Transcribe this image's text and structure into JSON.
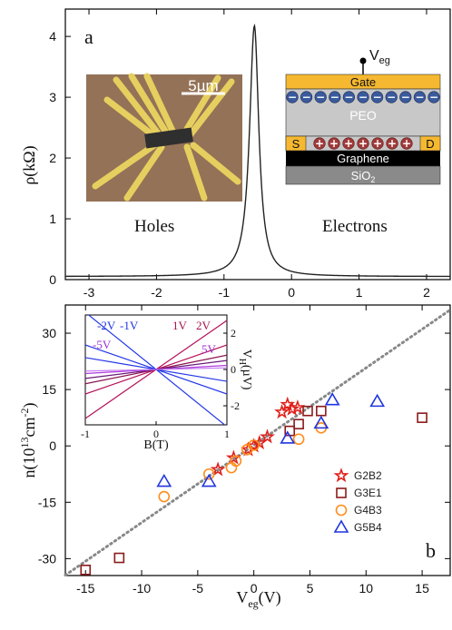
{
  "chart_data": [
    {
      "panel": "a",
      "type": "line",
      "panel_label": "a",
      "ylabel": "ρ(kΩ)",
      "ylim": [
        0,
        4.45
      ],
      "xlim": [
        -3.35,
        2.35
      ],
      "x_ticks": [
        -3,
        -2,
        -1,
        0,
        1,
        2
      ],
      "y_ticks": [
        0,
        1,
        2,
        3,
        4
      ],
      "annotations": [
        "Holes",
        "Electrons"
      ],
      "curve": {
        "peak_x": -0.55,
        "peak_y": 4.18,
        "baseline": 0.05,
        "gamma": 0.08
      },
      "inset_micrograph": {
        "scale_bar": "5µm"
      },
      "inset_schematic": {
        "terminal": "V",
        "terminal_sub": "eg",
        "layers": [
          "Gate",
          "PEO",
          "Graphene",
          "SiO"
        ],
        "sio_sub": "2",
        "contacts": [
          "S",
          "D"
        ],
        "top_ions": "−",
        "bottom_ions": "+"
      }
    },
    {
      "panel": "b",
      "type": "scatter",
      "panel_label": "b",
      "xlabel": "V",
      "xlabel_sub": "eg",
      "xlabel_unit": "(V)",
      "ylabel": "n(10",
      "ylabel_sup": "13",
      "ylabel_unit": "cm",
      "ylabel_sup2": "-2",
      "ylabel_end": ")",
      "xlim": [
        -16.8,
        17.5
      ],
      "ylim": [
        -34.5,
        37.5
      ],
      "x_ticks": [
        -15,
        -10,
        -5,
        0,
        5,
        10,
        15
      ],
      "y_ticks": [
        -30,
        -15,
        0,
        15,
        30
      ],
      "fit_line": {
        "x": [
          -16.8,
          17.5
        ],
        "y": [
          -34.4,
          36.2
        ],
        "style": "dotted",
        "color": "#888888"
      },
      "legend_position": "bottom-right",
      "series": [
        {
          "name": "G2B2",
          "marker": "star",
          "color": "#e0201b",
          "points": [
            [
              -3.2,
              -6.3
            ],
            [
              -1.8,
              -3.2
            ],
            [
              -0.5,
              -1.0
            ],
            [
              0.0,
              0.0
            ],
            [
              0.5,
              0.8
            ],
            [
              1.2,
              2.4
            ],
            [
              2.5,
              9.0
            ],
            [
              3.0,
              11.0
            ],
            [
              3.4,
              9.8
            ],
            [
              3.9,
              10.2
            ]
          ]
        },
        {
          "name": "G3E1",
          "marker": "square",
          "color": "#8b1a1a",
          "points": [
            [
              -15.0,
              -33.0
            ],
            [
              -12.0,
              -29.8
            ],
            [
              3.2,
              4.0
            ],
            [
              4.0,
              5.8
            ],
            [
              4.8,
              9.3
            ],
            [
              6.0,
              9.3
            ],
            [
              15.0,
              7.5
            ]
          ]
        },
        {
          "name": "G4B3",
          "marker": "circle",
          "color": "#ff8c1a",
          "points": [
            [
              -8.0,
              -13.5
            ],
            [
              -4.0,
              -7.5
            ],
            [
              -2.0,
              -5.8
            ],
            [
              -1.6,
              -4.0
            ],
            [
              -0.6,
              -1.0
            ],
            [
              0.0,
              0.2
            ],
            [
              4.0,
              1.8
            ],
            [
              6.0,
              4.8
            ]
          ]
        },
        {
          "name": "G5B4",
          "marker": "triangle",
          "color": "#1f35e0",
          "points": [
            [
              -8.0,
              -9.5
            ],
            [
              -4.0,
              -9.5
            ],
            [
              3.0,
              2.0
            ],
            [
              6.0,
              6.0
            ],
            [
              7.0,
              12.2
            ],
            [
              11.0,
              11.8
            ]
          ]
        }
      ],
      "inset": {
        "xlabel": "B(T)",
        "ylabel": "V",
        "ylabel_sub": "H",
        "ylabel_unit": "(µV)",
        "x_ticks": [
          -1,
          0,
          1
        ],
        "y_ticks": [
          2,
          0,
          -2
        ],
        "line_labels": [
          {
            "text": "-2V",
            "color": "#1f35e0"
          },
          {
            "text": "-1V",
            "color": "#1f35e0"
          },
          {
            "text": "1V",
            "color": "#a5124e"
          },
          {
            "text": "2V",
            "color": "#a5124e"
          },
          {
            "text": "-5V",
            "color": "#9b30d0"
          },
          {
            "text": "5V",
            "color": "#9b30d0"
          }
        ],
        "lines": [
          {
            "slope": -14.0,
            "color": "#2437e8"
          },
          {
            "slope": -6.0,
            "color": "#2437e8"
          },
          {
            "slope": -2.9,
            "color": "#2437e8"
          },
          {
            "slope": 12.0,
            "color": "#b5125a"
          },
          {
            "slope": 6.0,
            "color": "#b5125a"
          },
          {
            "slope": 3.5,
            "color": "#8a1550"
          },
          {
            "slope": 2.2,
            "color": "#6a1a7a"
          },
          {
            "slope": 1.0,
            "color": "#b03adf"
          },
          {
            "slope": 0.4,
            "color": "#c27af0"
          }
        ]
      }
    }
  ]
}
